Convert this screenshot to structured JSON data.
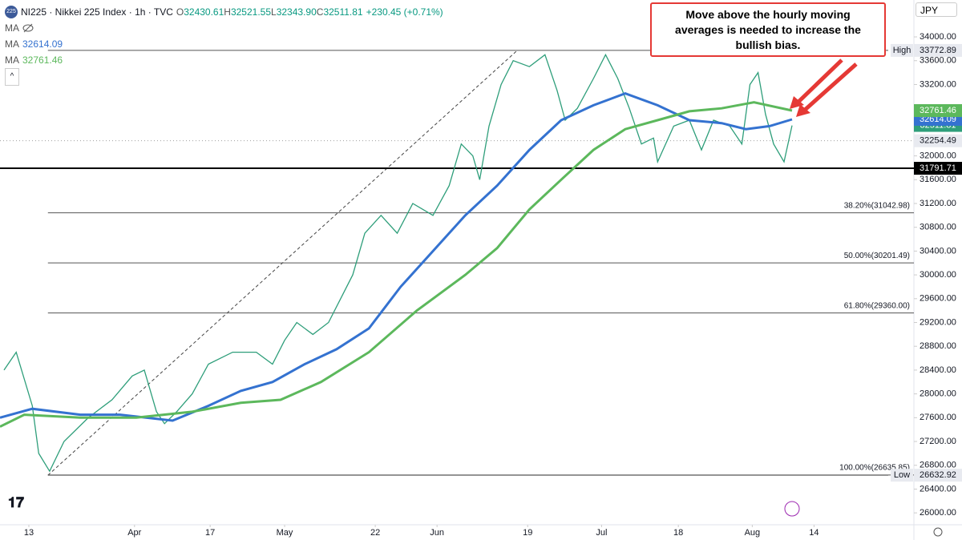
{
  "header": {
    "icon": "225",
    "symbol": "NI225 · Nikkei 225 Index · 1h · TVC",
    "ohlc": [
      {
        "label": "O",
        "value": 32430.61
      },
      {
        "label": "H",
        "value": 32521.55
      },
      {
        "label": "L",
        "value": 32343.9,
        "value_label": "32343.90"
      },
      {
        "label": "C",
        "value": 32511.81
      }
    ],
    "change": "+230.45 (+0.71%)",
    "hidden_indicator": "MA",
    "currency": "JPY"
  },
  "chart_data": {
    "type": "line",
    "annotation": "Move above the hourly moving averages is needed to increase the bullish bias.",
    "xlim": [
      -5,
      153.3
    ],
    "ylim": [
      25800,
      34620
    ],
    "xticks": [
      {
        "value": 0,
        "label": "13"
      },
      {
        "value": 18.3,
        "label": "Apr"
      },
      {
        "value": 31.4,
        "label": "17"
      },
      {
        "value": 44.3,
        "label": "May"
      },
      {
        "value": 60,
        "label": "22"
      },
      {
        "value": 70.7,
        "label": "Jun"
      },
      {
        "value": 86.4,
        "label": "19"
      },
      {
        "value": 99.2,
        "label": "Jul"
      },
      {
        "value": 112.5,
        "label": "18"
      },
      {
        "value": 125.3,
        "label": "Aug"
      },
      {
        "value": 136,
        "label": "14"
      }
    ],
    "yticks": [
      {
        "value": 26000,
        "label": "26000.00"
      },
      {
        "value": 26400,
        "label": "26400.00"
      },
      {
        "value": 26800,
        "label": "26800.00"
      },
      {
        "value": 27200,
        "label": "27200.00"
      },
      {
        "value": 27600,
        "label": "27600.00"
      },
      {
        "value": 28000,
        "label": "28000.00"
      },
      {
        "value": 28400,
        "label": "28400.00"
      },
      {
        "value": 28800,
        "label": "28800.00"
      },
      {
        "value": 29200,
        "label": "29200.00"
      },
      {
        "value": 29600,
        "label": "29600.00"
      },
      {
        "value": 30000,
        "label": "30000.00"
      },
      {
        "value": 30400,
        "label": "30400.00"
      },
      {
        "value": 30800,
        "label": "30800.00"
      },
      {
        "value": 31200,
        "label": "31200.00"
      },
      {
        "value": 31600,
        "label": "31600.00"
      },
      {
        "value": 32000,
        "label": "32000.00"
      },
      {
        "value": 33200,
        "label": "33200.00"
      },
      {
        "value": 33600,
        "label": "33600.00"
      },
      {
        "value": 34000,
        "label": "34000.00"
      }
    ],
    "series": [
      {
        "name": "NI225",
        "color": "#2e9e7a",
        "x": [
          -4.3,
          -2.2,
          0.6,
          1.7,
          3.6,
          6.1,
          10.3,
          14.4,
          17.9,
          20,
          22.1,
          23.5,
          25.6,
          28.3,
          31.1,
          35.3,
          39.4,
          42.2,
          44.3,
          46.4,
          49.2,
          51.9,
          54,
          56.1,
          58.2,
          61,
          63.8,
          66.5,
          70,
          72.8,
          74.9,
          76.9,
          78.1,
          79.7,
          81.8,
          83.9,
          86.7,
          89.4,
          91.5,
          92.9,
          95,
          97.8,
          99.9,
          102,
          104,
          106.1,
          108.2,
          108.9,
          111.7,
          114.4,
          116.5,
          118.6,
          121.4,
          123.5,
          124.9,
          126.3,
          127.6,
          129,
          130.8,
          132.2
        ],
        "values": [
          28400,
          28700,
          27800,
          27000,
          26700,
          27200,
          27600,
          27900,
          28300,
          28400,
          27700,
          27500,
          27700,
          28000,
          28500,
          28700,
          28700,
          28500,
          28900,
          29200,
          29000,
          29200,
          29600,
          30000,
          30700,
          31000,
          30700,
          31200,
          31000,
          31500,
          32200,
          32000,
          31600,
          32500,
          33200,
          33600,
          33500,
          33700,
          33100,
          32600,
          32800,
          33300,
          33700,
          33300,
          32800,
          32200,
          32300,
          31900,
          32500,
          32600,
          32100,
          32600,
          32500,
          32200,
          33200,
          33400,
          32700,
          32200,
          31900,
          32511.81
        ]
      },
      {
        "name": "MA",
        "color": "#3472d0",
        "x": [
          -5,
          0.6,
          8.9,
          15.8,
          24.9,
          31.1,
          36.7,
          42.2,
          47.8,
          53.3,
          58.9,
          64.4,
          70,
          75.6,
          81.1,
          86.7,
          92.2,
          97.8,
          103.3,
          108.9,
          114.4,
          120,
          124.2,
          128.3,
          132.2
        ],
        "values": [
          27600,
          27750,
          27650,
          27650,
          27550,
          27800,
          28050,
          28200,
          28500,
          28750,
          29100,
          29800,
          30400,
          31000,
          31500,
          32100,
          32600,
          32850,
          33050,
          32850,
          32600,
          32550,
          32450,
          32500,
          32614.09
        ]
      },
      {
        "name": "MA",
        "color": "#5cb85c",
        "x": [
          -5,
          -0.8,
          8.9,
          18.6,
          28.3,
          36.7,
          43.6,
          50.6,
          58.9,
          67.2,
          75.6,
          81.1,
          86.7,
          92.2,
          97.8,
          103.3,
          108.9,
          114.4,
          120,
          125.6,
          132.2
        ],
        "values": [
          27450,
          27650,
          27600,
          27600,
          27700,
          27850,
          27900,
          28200,
          28700,
          29400,
          30000,
          30450,
          31100,
          31600,
          32100,
          32450,
          32600,
          32750,
          32800,
          32900,
          32761.46
        ]
      }
    ],
    "trendline": {
      "x": [
        3.3,
        84.6
      ],
      "values": [
        26632.92,
        33772.89
      ]
    },
    "levels": [
      {
        "value": 33772.89,
        "tag": "High",
        "color": "#555555",
        "tag_color": "#e8eaf0"
      },
      {
        "value": 32254.49,
        "color": "#9e9e9e",
        "dotted": true,
        "tag_color": "#e8eaf0"
      },
      {
        "value": 31791.71,
        "color": "#000000",
        "width": 2,
        "tag_color": "#000000"
      },
      {
        "value": 31042.98,
        "label": "38.20%(31042.98)",
        "color": "#555555"
      },
      {
        "value": 30201.49,
        "label": "50.00%(30201.49)",
        "color": "#555555"
      },
      {
        "value": 29360,
        "label": "61.80%(29360.00)",
        "color": "#555555"
      },
      {
        "value": 26635.85,
        "label": "100.00%(26635.85)",
        "color": "#555555"
      },
      {
        "value": 26632.92,
        "tag": "Low",
        "color": "#555555",
        "tag_color": "#e8eaf0"
      }
    ]
  }
}
